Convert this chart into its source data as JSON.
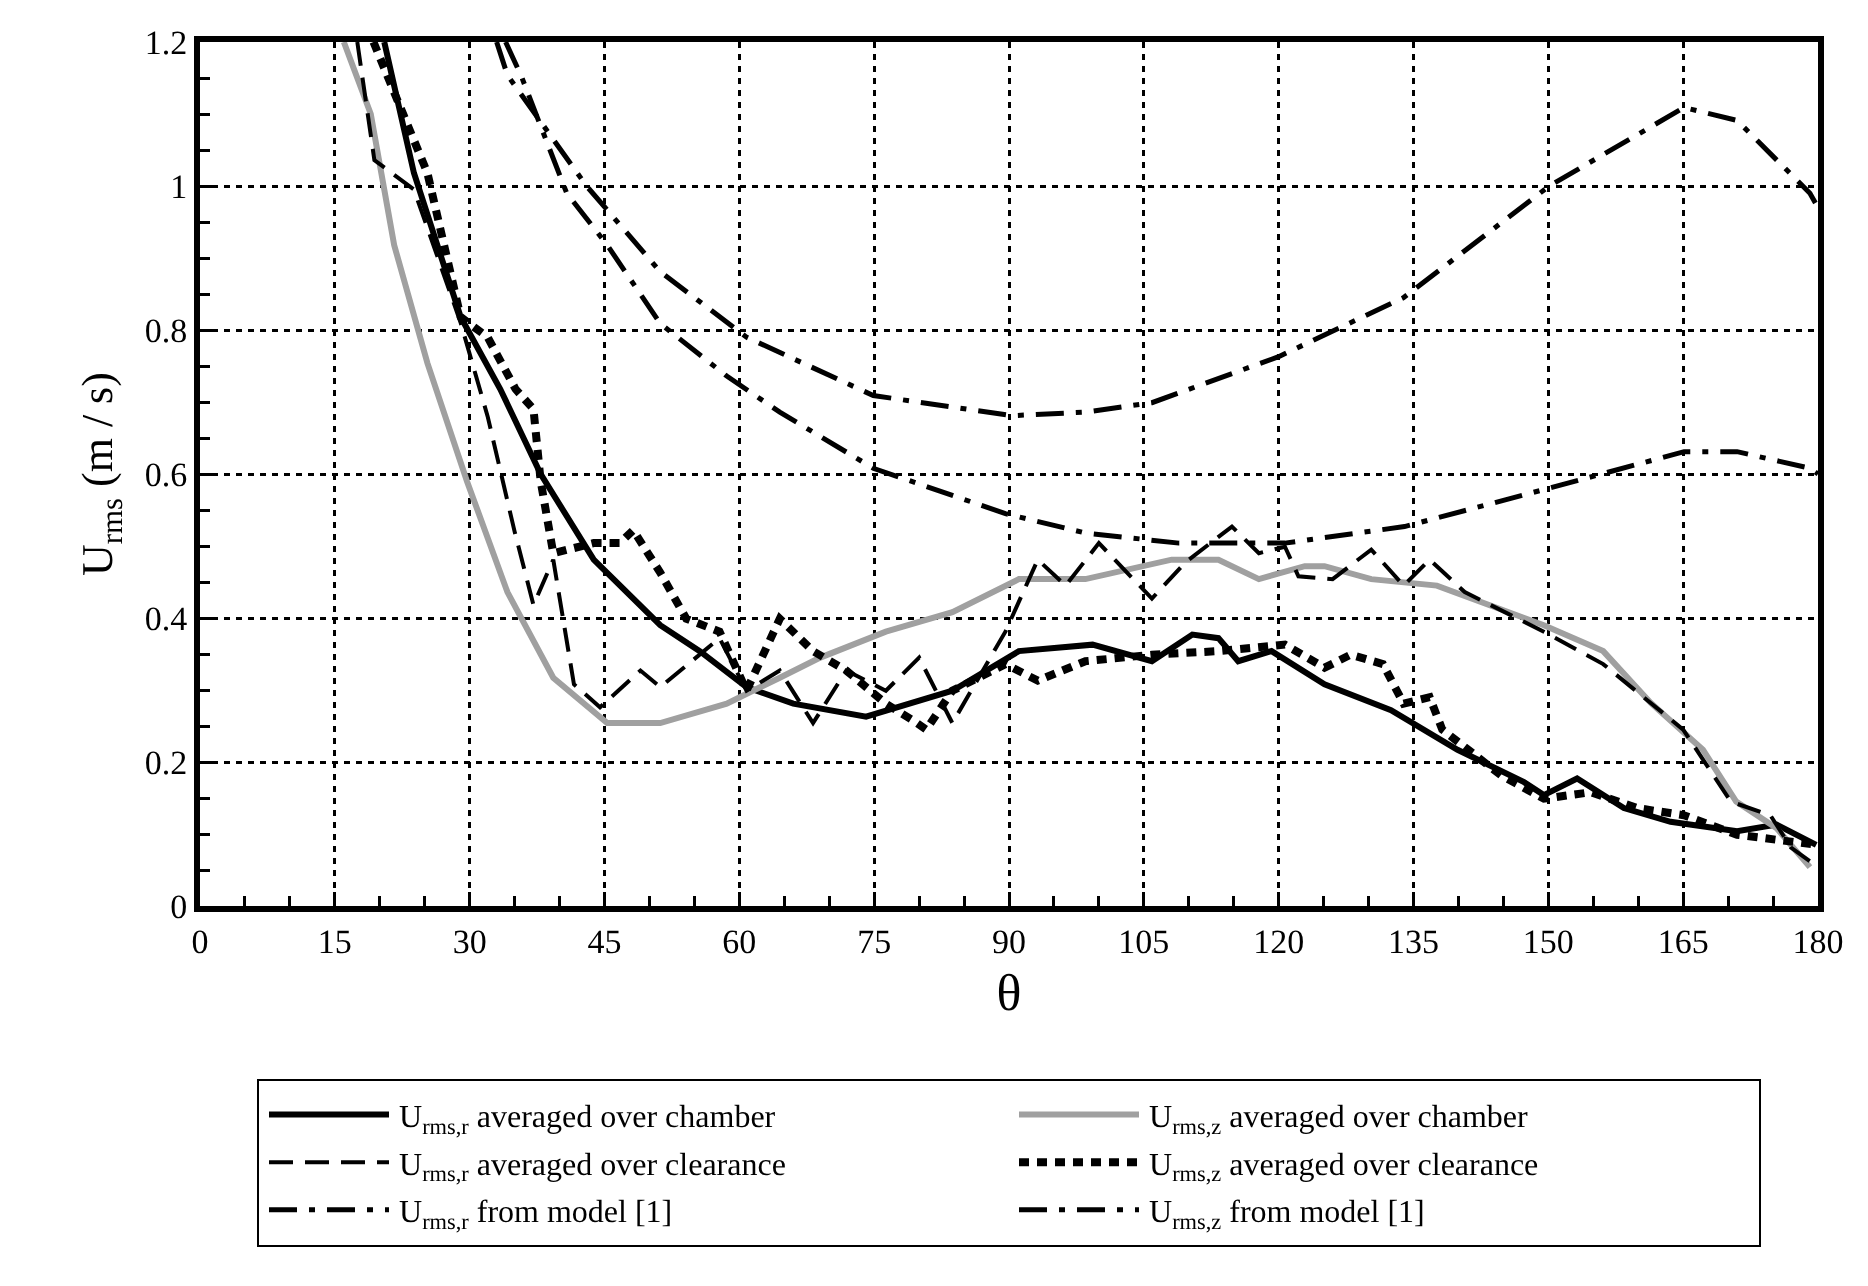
{
  "chart_data": {
    "type": "line",
    "xlabel": "θ",
    "ylabel": "U$_{rms}$ (m / s)",
    "xlim": [
      0,
      180
    ],
    "xticks": [
      0,
      15,
      30,
      45,
      60,
      75,
      90,
      105,
      120,
      135,
      150,
      165,
      180
    ],
    "ylim": [
      0,
      1.2
    ],
    "yticks": [
      0,
      0.2,
      0.4,
      0.6,
      0.8,
      1,
      1.2
    ],
    "grid": true,
    "legend": "bottom",
    "marker": "none",
    "series": [
      {
        "name": "U$_{rms,r}$ averaged over chamber",
        "color": "#000000",
        "line_style": "solid",
        "x": [
          20.5,
          23.8,
          29,
          33.4,
          37.9,
          43.8,
          51.2,
          55.6,
          60.8,
          66,
          74.1,
          83.7,
          91.1,
          99.3,
          105.9,
          110.4,
          113.3,
          115.5,
          119.2,
          125.1,
          132.5,
          139.9,
          147.3,
          149.5,
          153.2,
          158.4,
          163.6,
          171,
          175.4,
          179.8
        ],
        "values": [
          1.2,
          1.018,
          0.818,
          0.718,
          0.6,
          0.481,
          0.39,
          0.354,
          0.304,
          0.281,
          0.263,
          0.299,
          0.354,
          0.363,
          0.34,
          0.377,
          0.372,
          0.34,
          0.354,
          0.308,
          0.272,
          0.217,
          0.172,
          0.154,
          0.177,
          0.136,
          0.117,
          0.104,
          0.113,
          0.085
        ]
      },
      {
        "name": "U$_{rms,z}$ averaged over chamber",
        "color": "#a0a0a0",
        "line_style": "solid",
        "x": [
          16,
          19,
          21.6,
          25.3,
          29.7,
          34.2,
          39.3,
          45.3,
          51.2,
          58.6,
          61.5,
          64.5,
          69,
          76.3,
          83.7,
          91.1,
          98.5,
          108.1,
          113.3,
          117.8,
          122.9,
          125.1,
          130.3,
          137.6,
          149.5,
          156.1,
          161.4,
          167.2,
          170.9,
          175.4,
          179.1
        ],
        "values": [
          1.2,
          1.1,
          0.918,
          0.754,
          0.59,
          0.436,
          0.317,
          0.254,
          0.254,
          0.281,
          0.299,
          0.317,
          0.345,
          0.381,
          0.408,
          0.454,
          0.454,
          0.481,
          0.481,
          0.454,
          0.472,
          0.472,
          0.454,
          0.445,
          0.39,
          0.354,
          0.282,
          0.217,
          0.145,
          0.108,
          0.054
        ]
      },
      {
        "name": "U$_{rms,r}$ averaged over clearance",
        "color": "#000000",
        "line_style": "dashed",
        "x": [
          17.5,
          19.4,
          23.8,
          29,
          32,
          35,
          37.1,
          39.3,
          41.6,
          44.5,
          49,
          51.2,
          57.8,
          60.8,
          64.5,
          68.2,
          71.9,
          76.3,
          80,
          83.7,
          89.6,
          93.2,
          96.3,
          100,
          105.9,
          109.6,
          114.8,
          117.8,
          120.7,
          122.2,
          126,
          130.3,
          133.9,
          136.8,
          140.7,
          149.5,
          156.1,
          165,
          170.3,
          174.7,
          177,
          180
        ],
        "values": [
          1.2,
          1.036,
          0.995,
          0.81,
          0.68,
          0.52,
          0.418,
          0.481,
          0.308,
          0.276,
          0.327,
          0.304,
          0.372,
          0.299,
          0.327,
          0.254,
          0.327,
          0.299,
          0.345,
          0.254,
          0.381,
          0.481,
          0.445,
          0.504,
          0.427,
          0.477,
          0.527,
          0.49,
          0.499,
          0.458,
          0.454,
          0.495,
          0.445,
          0.481,
          0.436,
          0.381,
          0.336,
          0.245,
          0.145,
          0.126,
          0.081,
          0.054
        ]
      },
      {
        "name": "U$_{rms,z}$ averaged over clearance",
        "color": "#000000",
        "line_style": "dotted",
        "x": [
          19.3,
          25.3,
          29,
          32,
          35.1,
          37.1,
          37.9,
          39.3,
          43.8,
          46.7,
          48.2,
          51.2,
          54.1,
          57.8,
          60.8,
          64.5,
          68.2,
          71.9,
          76.3,
          79.3,
          80.8,
          83.7,
          89.6,
          93.2,
          98.5,
          105.9,
          113.3,
          120.7,
          125.1,
          128,
          131.6,
          133.9,
          136.8,
          138.2,
          144.8,
          149.5,
          154.7,
          159.9,
          165.1,
          171,
          179.8
        ],
        "values": [
          1.2,
          1.018,
          0.818,
          0.79,
          0.718,
          0.69,
          0.59,
          0.49,
          0.504,
          0.504,
          0.522,
          0.463,
          0.399,
          0.381,
          0.299,
          0.399,
          0.354,
          0.327,
          0.281,
          0.258,
          0.245,
          0.299,
          0.336,
          0.313,
          0.34,
          0.349,
          0.354,
          0.363,
          0.331,
          0.349,
          0.336,
          0.281,
          0.29,
          0.245,
          0.181,
          0.149,
          0.158,
          0.136,
          0.126,
          0.099,
          0.085
        ]
      },
      {
        "name": "U$_{rms,r}$ from model [1]",
        "color": "#000000",
        "line_style": "dashdot",
        "x": [
          34,
          35.7,
          40.8,
          45.3,
          51.2,
          58.6,
          64.5,
          74.9,
          89.6,
          98.5,
          108.9,
          120.7,
          134,
          150.3,
          165.1,
          171,
          179.1,
          180
        ],
        "values": [
          1.2,
          1.154,
          0.99,
          0.918,
          0.809,
          0.736,
          0.686,
          0.608,
          0.545,
          0.518,
          0.504,
          0.504,
          0.527,
          0.581,
          0.631,
          0.631,
          0.608,
          0.6
        ]
      },
      {
        "name": "U$_{rms,z}$ from model [1]",
        "color": "#000000",
        "line_style": "dashdot",
        "x": [
          33,
          34.2,
          43,
          51.2,
          60.8,
          74.9,
          90.3,
          98.5,
          105.9,
          120,
          133.9,
          150.1,
          165.1,
          171,
          179.1,
          180
        ],
        "values": [
          1.2,
          1.154,
          1,
          0.881,
          0.79,
          0.709,
          0.681,
          0.686,
          0.699,
          0.763,
          0.845,
          1,
          1.109,
          1.091,
          0.99,
          0.97
        ]
      }
    ]
  }
}
